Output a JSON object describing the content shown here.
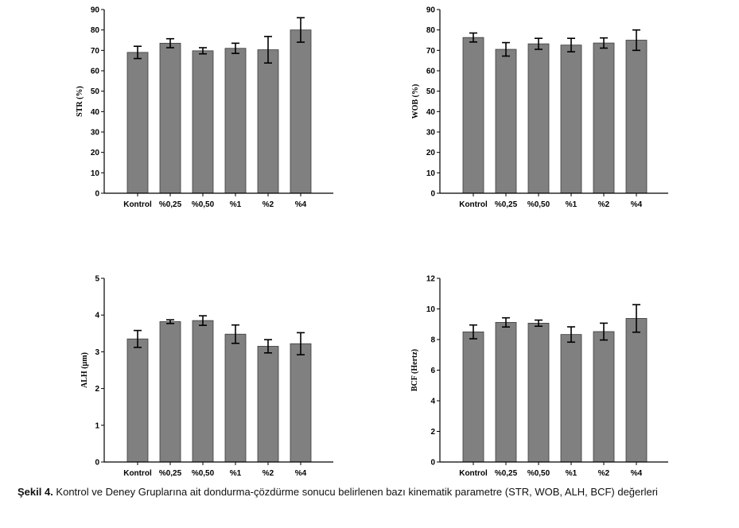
{
  "chart_data": [
    {
      "type": "bar",
      "title": "",
      "xlabel": "",
      "ylabel": "STR (%)",
      "ylim": [
        0,
        90
      ],
      "yticks": [
        0,
        10,
        20,
        30,
        40,
        50,
        60,
        70,
        80,
        90
      ],
      "categories": [
        "Kontrol",
        "%0,25",
        "%0,50",
        "%1",
        "%2",
        "%4"
      ],
      "values": [
        69,
        73.5,
        69.8,
        71,
        70.3,
        80
      ],
      "errors": [
        3,
        2.2,
        1.5,
        2.5,
        6.5,
        6
      ],
      "grid": false,
      "legend": "none",
      "bar_color": "#808080"
    },
    {
      "type": "bar",
      "title": "",
      "xlabel": "",
      "ylabel": "WOB (%)",
      "ylim": [
        0,
        90
      ],
      "yticks": [
        0,
        10,
        20,
        30,
        40,
        50,
        60,
        70,
        80,
        90
      ],
      "categories": [
        "Kontrol",
        "%0,25",
        "%0,50",
        "%1",
        "%2",
        "%4"
      ],
      "values": [
        76.3,
        70.5,
        73.2,
        72.6,
        73.6,
        75
      ],
      "errors": [
        2.2,
        3.3,
        2.7,
        3.3,
        2.5,
        5
      ],
      "grid": false,
      "legend": "none",
      "bar_color": "#808080"
    },
    {
      "type": "bar",
      "title": "",
      "xlabel": "",
      "ylabel": "ALH (µm)",
      "ylim": [
        0,
        5
      ],
      "yticks": [
        0,
        1,
        2,
        3,
        4,
        5
      ],
      "categories": [
        "Kontrol",
        "%0,25",
        "%0,50",
        "%1",
        "%2",
        "%4"
      ],
      "values": [
        3.35,
        3.82,
        3.85,
        3.48,
        3.15,
        3.22
      ],
      "errors": [
        0.23,
        0.05,
        0.13,
        0.25,
        0.18,
        0.3
      ],
      "grid": false,
      "legend": "none",
      "bar_color": "#808080"
    },
    {
      "type": "bar",
      "title": "",
      "xlabel": "",
      "ylabel": "BCF (Hertz)",
      "ylim": [
        0,
        12
      ],
      "yticks": [
        0,
        2,
        4,
        6,
        8,
        10,
        12
      ],
      "categories": [
        "Kontrol",
        "%0,25",
        "%0,50",
        "%1",
        "%2",
        "%4"
      ],
      "values": [
        8.5,
        9.12,
        9.07,
        8.33,
        8.52,
        9.38
      ],
      "errors": [
        0.45,
        0.3,
        0.2,
        0.5,
        0.55,
        0.9
      ],
      "grid": false,
      "legend": "none",
      "bar_color": "#808080"
    }
  ],
  "caption": {
    "label": "Şekil 4.",
    "text": " Kontrol ve Deney Gruplarına ait dondurma-çözdürme sonucu belirlenen bazı kinematik parametre (STR, WOB, ALH, BCF) değerleri"
  }
}
